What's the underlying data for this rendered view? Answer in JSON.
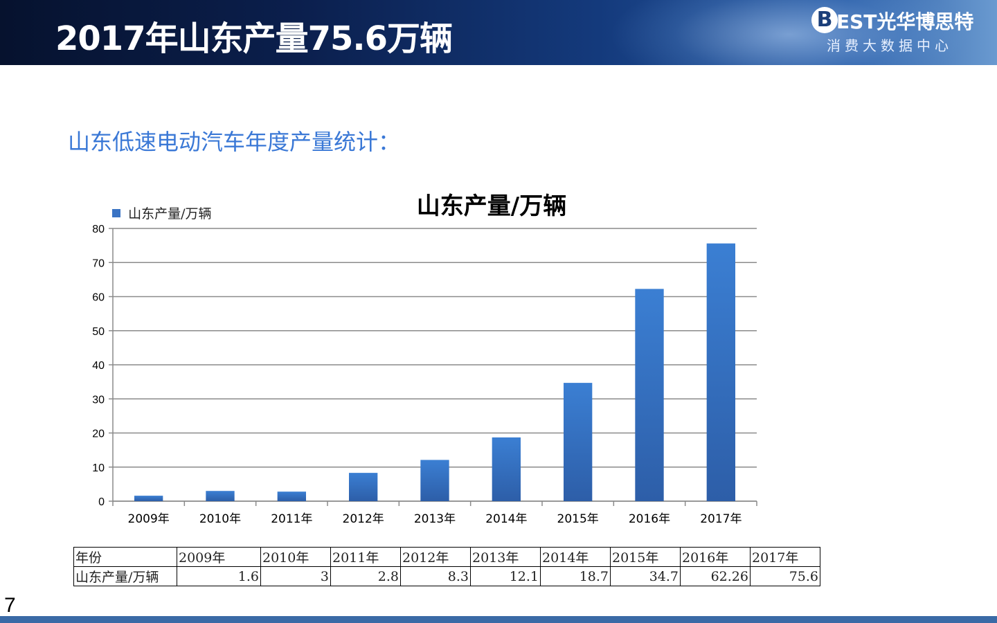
{
  "header": {
    "title": "2017年山东产量75.6万辆",
    "logo": {
      "mark": "B",
      "brand": "EST光华博思特",
      "subtitle": "消费大数据中心"
    }
  },
  "subtitle": "山东低速电动汽车年度产量统计：",
  "page_number": "7",
  "colors": {
    "bar": "#3a73c4",
    "header": "#0b1f4d",
    "subtitle": "#3a78d6"
  },
  "chart_data": {
    "type": "bar",
    "title": "山东产量/万辆",
    "legend": "top-left",
    "grid": true,
    "categories": [
      "2009年",
      "2010年",
      "2011年",
      "2012年",
      "2013年",
      "2014年",
      "2015年",
      "2016年",
      "2017年"
    ],
    "series": [
      {
        "name": "山东产量/万辆",
        "values": [
          1.6,
          3,
          2.8,
          8.3,
          12.1,
          18.7,
          34.7,
          62.26,
          75.6
        ]
      }
    ],
    "ylim": [
      0,
      80
    ],
    "yticks": [
      0,
      10,
      20,
      30,
      40,
      50,
      60,
      70,
      80
    ]
  },
  "table": {
    "header_label": "年份",
    "row_label": "山东产量/万辆",
    "years": [
      "2009年",
      "2010年",
      "2011年",
      "2012年",
      "2013年",
      "2014年",
      "2015年",
      "2016年",
      "2017年"
    ],
    "values": [
      "1.6",
      "3",
      "2.8",
      "8.3",
      "12.1",
      "18.7",
      "34.7",
      "62.26",
      "75.6"
    ]
  }
}
